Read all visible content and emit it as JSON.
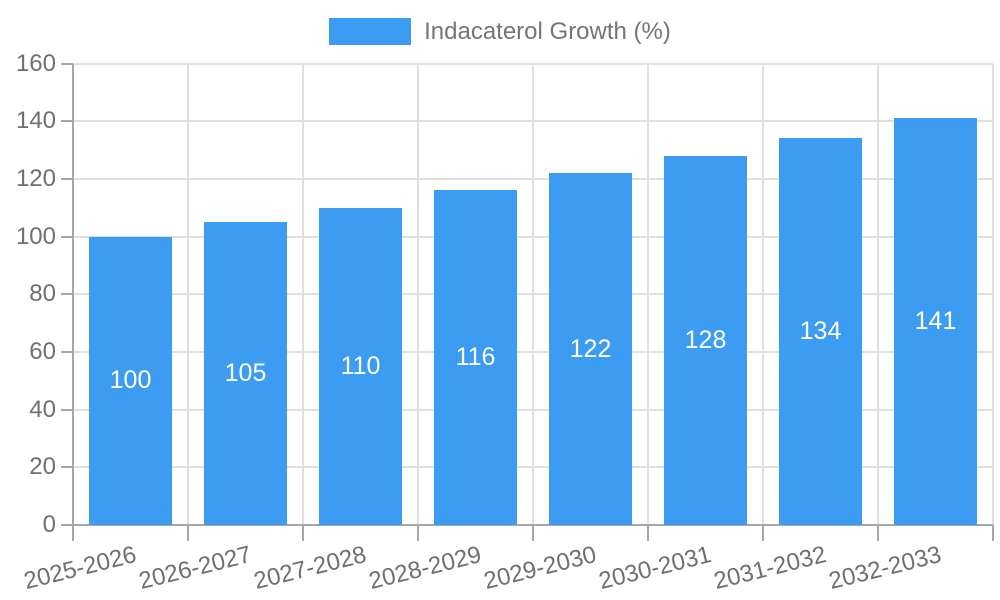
{
  "chart_data": {
    "type": "bar",
    "title": "",
    "legend": {
      "label": "Indacaterol Growth (%)",
      "position": "top"
    },
    "categories": [
      "2025-2026",
      "2026-2027",
      "2027-2028",
      "2028-2029",
      "2029-2030",
      "2030-2031",
      "2031-2032",
      "2032-2033"
    ],
    "series": [
      {
        "name": "Indacaterol Growth (%)",
        "values": [
          100,
          105,
          110,
          116,
          122,
          128,
          134,
          141
        ]
      }
    ],
    "value_labels": [
      "100",
      "105",
      "110",
      "116",
      "122",
      "128",
      "134",
      "141"
    ],
    "xlabel": "",
    "ylabel": "",
    "ylim": [
      0,
      160
    ],
    "yticks": [
      0,
      20,
      40,
      60,
      80,
      100,
      120,
      140,
      160
    ],
    "grid": "horizontal-and-vertical",
    "x_label_rotation_deg": -14,
    "colors": {
      "bar": "#3b9cf2",
      "value_label": "#ffffff",
      "gridline": "#e0e0e0",
      "axis_line": "#a6a6a6",
      "axis_text": "#6f6f6f",
      "legend_text": "#757575",
      "background": "#ffffff"
    }
  }
}
